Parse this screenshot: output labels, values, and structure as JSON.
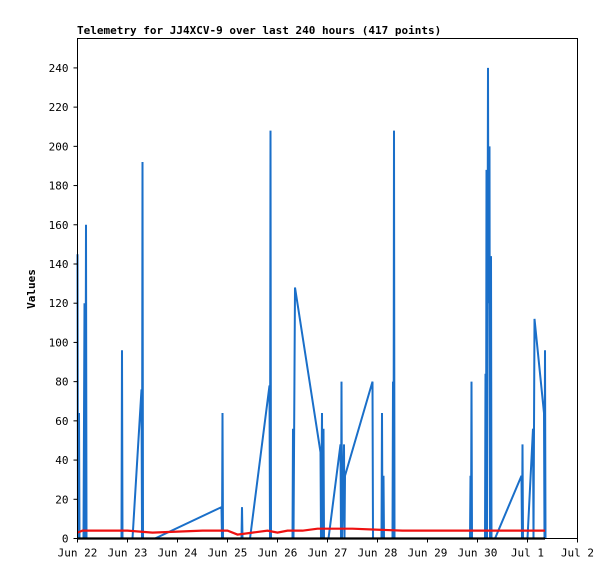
{
  "chart_data": {
    "type": "line",
    "title": "Telemetry for JJ4XCV-9 over last 240 hours (417 points)",
    "xlabel": "",
    "ylabel": "Values",
    "xlim": [
      0,
      10
    ],
    "ylim": [
      0,
      255
    ],
    "x_tick_values": [
      0,
      1,
      2,
      3,
      4,
      5,
      6,
      7,
      8,
      9,
      10
    ],
    "x_tick_labels": [
      "Jun 22",
      "Jun 23",
      "Jun 24",
      "Jun 25",
      "Jun 26",
      "Jun 27",
      "Jun 28",
      "Jun 29",
      "Jun 30",
      "Jul 1",
      "Jul 2"
    ],
    "y_ticks": [
      0,
      20,
      40,
      60,
      80,
      100,
      120,
      140,
      160,
      180,
      200,
      220,
      240
    ],
    "grid": false,
    "colors": {
      "series1": "#1a6fc9",
      "series2": "#ee1111",
      "series3": "#000000"
    },
    "series": [
      {
        "color": "#1a6fc9",
        "points": [
          [
            0.0,
            145
          ],
          [
            0.01,
            0
          ],
          [
            0.03,
            64
          ],
          [
            0.04,
            0
          ],
          [
            0.12,
            0
          ],
          [
            0.14,
            120
          ],
          [
            0.15,
            0
          ],
          [
            0.16,
            40
          ],
          [
            0.17,
            160
          ],
          [
            0.18,
            0
          ],
          [
            0.88,
            0
          ],
          [
            0.89,
            96
          ],
          [
            0.9,
            0
          ],
          [
            1.1,
            0
          ],
          [
            1.28,
            76
          ],
          [
            1.29,
            0
          ],
          [
            1.3,
            192
          ],
          [
            1.31,
            0
          ],
          [
            1.55,
            0
          ],
          [
            2.88,
            16
          ],
          [
            2.89,
            0
          ],
          [
            2.9,
            64
          ],
          [
            2.91,
            0
          ],
          [
            3.28,
            0
          ],
          [
            3.29,
            16
          ],
          [
            3.3,
            0
          ],
          [
            3.45,
            0
          ],
          [
            3.84,
            78
          ],
          [
            3.85,
            0
          ],
          [
            3.86,
            208
          ],
          [
            3.87,
            0
          ],
          [
            4.3,
            0
          ],
          [
            4.31,
            56
          ],
          [
            4.32,
            0
          ],
          [
            4.35,
            128
          ],
          [
            4.86,
            44
          ],
          [
            4.87,
            0
          ],
          [
            4.89,
            64
          ],
          [
            4.9,
            0
          ],
          [
            4.92,
            56
          ],
          [
            4.93,
            0
          ],
          [
            5.02,
            0
          ],
          [
            5.26,
            48
          ],
          [
            5.27,
            0
          ],
          [
            5.28,
            80
          ],
          [
            5.29,
            0
          ],
          [
            5.33,
            48
          ],
          [
            5.34,
            0
          ],
          [
            5.35,
            32
          ],
          [
            5.9,
            80
          ],
          [
            5.91,
            0
          ],
          [
            6.08,
            0
          ],
          [
            6.09,
            64
          ],
          [
            6.1,
            0
          ],
          [
            6.12,
            32
          ],
          [
            6.13,
            0
          ],
          [
            6.3,
            0
          ],
          [
            6.31,
            80
          ],
          [
            6.32,
            0
          ],
          [
            6.33,
            208
          ],
          [
            6.34,
            0
          ],
          [
            7.85,
            0
          ],
          [
            7.86,
            32
          ],
          [
            7.87,
            0
          ],
          [
            7.88,
            80
          ],
          [
            7.89,
            0
          ],
          [
            8.15,
            0
          ],
          [
            8.16,
            84
          ],
          [
            8.17,
            0
          ],
          [
            8.18,
            188
          ],
          [
            8.19,
            0
          ],
          [
            8.21,
            240
          ],
          [
            8.22,
            120
          ],
          [
            8.24,
            200
          ],
          [
            8.25,
            0
          ],
          [
            8.27,
            144
          ],
          [
            8.28,
            0
          ],
          [
            8.33,
            0
          ],
          [
            8.35,
            0
          ],
          [
            8.88,
            32
          ],
          [
            8.89,
            0
          ],
          [
            8.9,
            48
          ],
          [
            8.91,
            0
          ],
          [
            9.0,
            0
          ],
          [
            9.11,
            56
          ],
          [
            9.12,
            0
          ],
          [
            9.14,
            112
          ],
          [
            9.33,
            64
          ],
          [
            9.34,
            0
          ],
          [
            9.35,
            96
          ],
          [
            9.36,
            0
          ]
        ]
      },
      {
        "color": "#ee1111",
        "points": [
          [
            0.0,
            3
          ],
          [
            0.1,
            4
          ],
          [
            1.0,
            4
          ],
          [
            1.5,
            3
          ],
          [
            2.5,
            4
          ],
          [
            3.0,
            4
          ],
          [
            3.2,
            2
          ],
          [
            3.5,
            3
          ],
          [
            3.8,
            4
          ],
          [
            4.0,
            3
          ],
          [
            4.2,
            4
          ],
          [
            4.5,
            4
          ],
          [
            4.8,
            5
          ],
          [
            5.5,
            5
          ],
          [
            6.5,
            4
          ],
          [
            7.5,
            4
          ],
          [
            8.5,
            4
          ],
          [
            9.35,
            4
          ]
        ]
      },
      {
        "color": "#000000",
        "points": [
          [
            0.0,
            0
          ],
          [
            9.35,
            0
          ]
        ]
      }
    ]
  }
}
